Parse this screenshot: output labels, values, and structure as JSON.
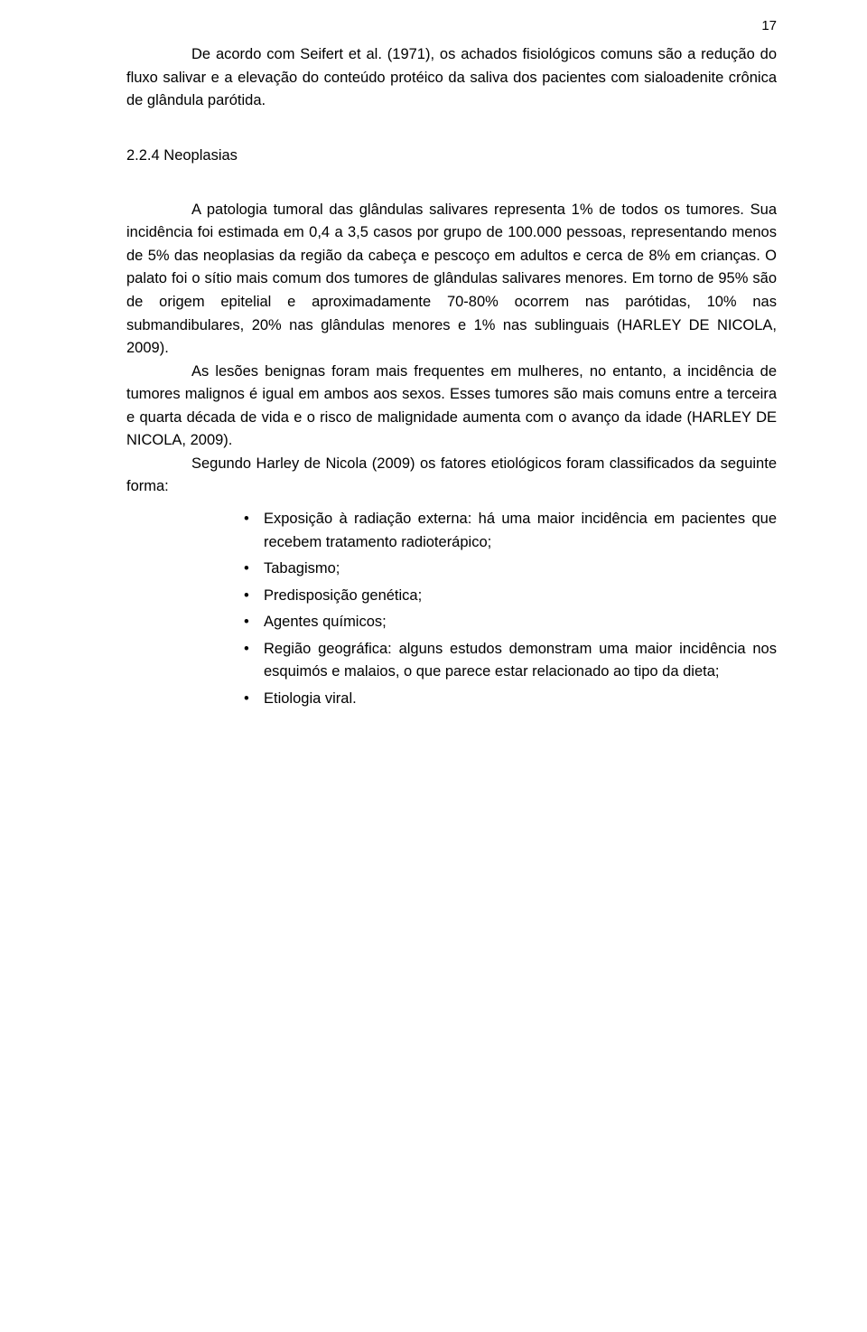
{
  "page_number": "17",
  "para1": "De acordo com Seifert et al. (1971), os achados fisiológicos comuns são a redução do fluxo salivar e a elevação do conteúdo protéico da saliva dos pacientes com sialoadenite crônica de glândula  parótida.",
  "section_number": "2.2.4 Neoplasias",
  "para2": "A patologia tumoral das glândulas salivares representa 1% de todos os tumores. Sua incidência foi estimada em 0,4 a 3,5 casos por grupo de 100.000 pessoas, representando menos de 5% das neoplasias da região da cabeça e pescoço em adultos e cerca de 8% em crianças. O palato foi o sítio mais comum dos tumores de glândulas salivares menores. Em torno de 95% são de origem epitelial e aproximadamente 70-80% ocorrem nas parótidas, 10% nas submandibulares, 20% nas glândulas menores e 1% nas sublinguais (HARLEY DE NICOLA, 2009).",
  "para3": "As lesões benignas foram mais frequentes em mulheres, no entanto, a incidência de tumores malignos é igual em ambos aos sexos. Esses tumores são mais comuns entre a terceira e quarta década de vida e o risco de malignidade aumenta com o avanço da idade (HARLEY DE NICOLA, 2009).",
  "para4": "Segundo Harley de Nicola (2009) os fatores etiológicos foram classificados da seguinte forma:",
  "bullets": [
    "Exposição à radiação externa: há uma maior incidência em pacientes que recebem tratamento radioterápico;",
    "Tabagismo;",
    "Predisposição genética;",
    "Agentes químicos;",
    "Região geográfica: alguns estudos demonstram uma maior incidência nos esquimós e malaios, o que parece estar relacionado ao tipo da dieta;",
    "Etiologia viral."
  ]
}
